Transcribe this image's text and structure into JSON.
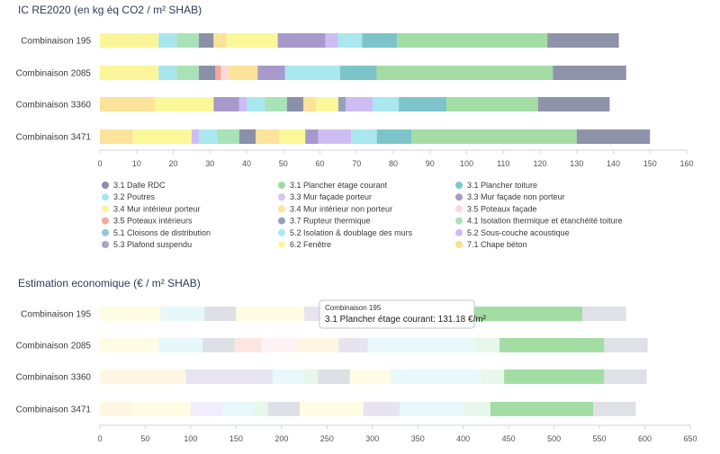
{
  "chart_data": [
    {
      "type": "bar",
      "orientation": "horizontal",
      "stacked": true,
      "title": "IC RE2020 (en kg éq CO2 / m² SHAB)",
      "categories": [
        "Combinaison 195",
        "Combinaison 2085",
        "Combinaison 3360",
        "Combinaison 3471"
      ],
      "xlim": [
        0,
        160
      ],
      "xticks": [
        0,
        10,
        20,
        30,
        40,
        50,
        60,
        70,
        80,
        90,
        100,
        110,
        120,
        130,
        140,
        150,
        160
      ],
      "grid": false,
      "legend_position": "bottom",
      "segments": [
        [
          {
            "series": "3.4 Mur intérieur porteur",
            "value": 16
          },
          {
            "series": "3.2 Poutres",
            "value": 5
          },
          {
            "series": "4.1 Isolation thermique et étanchéité toiture",
            "value": 6
          },
          {
            "series": "3.1 Dalle RDC",
            "value": 4
          },
          {
            "series": "3.4 Mur intérieur non porteur",
            "value": 3.5
          },
          {
            "series": "6.2 Fenêtre",
            "value": 14
          },
          {
            "series": "3.3 Mur façade non porteur",
            "value": 13
          },
          {
            "series": "5.2 Sous-couche acoustique",
            "value": 3.5
          },
          {
            "series": "5.2 Isolation & doublage des murs",
            "value": 6.5
          },
          {
            "series": "3.1 Plancher toiture",
            "value": 9.5
          },
          {
            "series": "3.1 Plancher étage courant",
            "value": 41
          },
          {
            "series": "3.5 Plafond suspendu",
            "value": 19.5
          }
        ],
        [
          {
            "series": "3.4 Mur intérieur porteur",
            "value": 16
          },
          {
            "series": "3.2 Poutres",
            "value": 5
          },
          {
            "series": "4.1 Isolation thermique et étanchéité toiture",
            "value": 6
          },
          {
            "series": "3.1 Dalle RDC",
            "value": 4.5
          },
          {
            "series": "3.5 Poteaux intérieurs",
            "value": 1.5
          },
          {
            "series": "3.5 Poteaux façade",
            "value": 2
          },
          {
            "series": "3.4 Mur intérieur non porteur",
            "value": 8
          },
          {
            "series": "3.3 Mur façade non porteur",
            "value": 7.5
          },
          {
            "series": "5.2 Isolation & doublage des murs",
            "value": 15
          },
          {
            "series": "3.1 Plancher toiture",
            "value": 10
          },
          {
            "series": "3.1 Plancher étage courant",
            "value": 48
          },
          {
            "series": "3.5 Plafond suspendu",
            "value": 20
          }
        ],
        [
          {
            "series": "3.4 Mur intérieur non porteur",
            "value": 15
          },
          {
            "series": "6.2 Fenêtre",
            "value": 16
          },
          {
            "series": "3.3 Mur façade non porteur",
            "value": 7
          },
          {
            "series": "5.2 Sous-couche acoustique",
            "value": 2
          },
          {
            "series": "5.2 Isolation & doublage des murs",
            "value": 5
          },
          {
            "series": "4.1 Isolation thermique et étanchéité toiture",
            "value": 6
          },
          {
            "series": "3.1 Dalle RDC",
            "value": 4.5
          },
          {
            "series": "3.4 Mur intérieur non porteur",
            "value": 3.5
          },
          {
            "series": "6.2 Fenêtre",
            "value": 6
          },
          {
            "series": "3.7 Rupteur thermique",
            "value": 2
          },
          {
            "series": "5.2 Sous-couche acoustique",
            "value": 7.5
          },
          {
            "series": "5.2 Isolation & doublage des murs",
            "value": 7
          },
          {
            "series": "3.1 Plancher toiture",
            "value": 13
          },
          {
            "series": "3.1 Plancher étage courant",
            "value": 25
          },
          {
            "series": "3.5 Plafond suspendu",
            "value": 19.5
          }
        ],
        [
          {
            "series": "3.4 Mur intérieur non porteur",
            "value": 9
          },
          {
            "series": "6.2 Fenêtre",
            "value": 16
          },
          {
            "series": "5.2 Sous-couche acoustique",
            "value": 2
          },
          {
            "series": "5.2 Isolation & doublage des murs",
            "value": 5
          },
          {
            "series": "4.1 Isolation thermique et étanchéité toiture",
            "value": 6
          },
          {
            "series": "3.1 Dalle RDC",
            "value": 4.5
          },
          {
            "series": "3.4 Mur intérieur non porteur",
            "value": 6.5
          },
          {
            "series": "6.2 Fenêtre",
            "value": 7
          },
          {
            "series": "3.3 Mur façade non porteur",
            "value": 3.5
          },
          {
            "series": "5.2 Sous-couche acoustique",
            "value": 9
          },
          {
            "series": "5.2 Isolation & doublage des murs",
            "value": 7
          },
          {
            "series": "3.1 Plancher toiture",
            "value": 9.5
          },
          {
            "series": "3.1 Plancher étage courant",
            "value": 45
          },
          {
            "series": "3.5 Plafond suspendu",
            "value": 20
          }
        ]
      ]
    },
    {
      "type": "bar",
      "orientation": "horizontal",
      "stacked": true,
      "title": "Estimation economique (€ / m² SHAB)",
      "categories": [
        "Combinaison 195",
        "Combinaison 2085",
        "Combinaison 3360",
        "Combinaison 3471"
      ],
      "xlim": [
        0,
        650
      ],
      "xticks": [
        0,
        50,
        100,
        150,
        200,
        250,
        300,
        350,
        400,
        450,
        500,
        550,
        600,
        650
      ],
      "grid": false,
      "highlighted_series": "3.1 Plancher étage courant",
      "tooltip": {
        "category": "Combinaison 195",
        "text": "3.1 Plancher étage courant: 131.18 €/m²"
      },
      "segments": [
        [
          {
            "series": "3.4 Mur intérieur porteur",
            "value": 67
          },
          {
            "series": "3.2 Poutres",
            "value": 48
          },
          {
            "series": "3.1 Dalle RDC",
            "value": 35
          },
          {
            "series": "6.2 Fenêtre",
            "value": 75
          },
          {
            "series": "3.3 Mur façade non porteur",
            "value": 55
          },
          {
            "series": "5.2 Isolation & doublage des murs",
            "value": 60
          },
          {
            "series": "3.1 Plancher toiture",
            "value": 60
          },
          {
            "series": "3.1 Plancher étage courant",
            "value": 131.18
          },
          {
            "series": "3.5 Plafond suspendu",
            "value": 48
          }
        ],
        [
          {
            "series": "3.4 Mur intérieur porteur",
            "value": 65
          },
          {
            "series": "3.2 Poutres",
            "value": 48
          },
          {
            "series": "3.1 Dalle RDC",
            "value": 35
          },
          {
            "series": "3.5 Poteaux intérieurs",
            "value": 30
          },
          {
            "series": "3.5 Poteaux façade",
            "value": 40
          },
          {
            "series": "3.4 Mur intérieur non porteur",
            "value": 45
          },
          {
            "series": "3.3 Mur façade non porteur",
            "value": 32
          },
          {
            "series": "5.2 Isolation & doublage des murs",
            "value": 118
          },
          {
            "series": "4.1 Isolation thermique et étanchéité toiture",
            "value": 27
          },
          {
            "series": "3.1 Plancher étage courant",
            "value": 115
          },
          {
            "series": "3.5 Plafond suspendu",
            "value": 48
          }
        ],
        [
          {
            "series": "3.4 Mur intérieur non porteur",
            "value": 95
          },
          {
            "series": "3.3 Mur façade non porteur",
            "value": 95
          },
          {
            "series": "5.2 Isolation & doublage des murs",
            "value": 35
          },
          {
            "series": "4.1 Isolation thermique et étanchéité toiture",
            "value": 15
          },
          {
            "series": "3.1 Dalle RDC",
            "value": 35
          },
          {
            "series": "6.2 Fenêtre",
            "value": 45
          },
          {
            "series": "5.2 Isolation & doublage des murs",
            "value": 100
          },
          {
            "series": "4.1 Isolation thermique et étanchéité toiture",
            "value": 25
          },
          {
            "series": "3.1 Plancher étage courant",
            "value": 110
          },
          {
            "series": "3.5 Plafond suspendu",
            "value": 47
          }
        ],
        [
          {
            "series": "3.4 Mur intérieur non porteur",
            "value": 35
          },
          {
            "series": "6.2 Fenêtre",
            "value": 65
          },
          {
            "series": "5.2 Sous-couche acoustique",
            "value": 35
          },
          {
            "series": "5.2 Isolation & doublage des murs",
            "value": 35
          },
          {
            "series": "4.1 Isolation thermique et étanchéité toiture",
            "value": 15
          },
          {
            "series": "3.1 Dalle RDC",
            "value": 35
          },
          {
            "series": "6.2 Fenêtre",
            "value": 70
          },
          {
            "series": "3.3 Mur façade non porteur",
            "value": 40
          },
          {
            "series": "5.2 Isolation & doublage des murs",
            "value": 72
          },
          {
            "series": "4.1 Isolation thermique et étanchéité toiture",
            "value": 28
          },
          {
            "series": "3.1 Plancher étage courant",
            "value": 113
          },
          {
            "series": "3.5 Plafond suspendu",
            "value": 47
          }
        ]
      ]
    }
  ],
  "legend": [
    {
      "name": "3.1 Dalle RDC",
      "color": "#8a90a8"
    },
    {
      "name": "3.1 Plancher étage courant",
      "color": "#9fdb9f"
    },
    {
      "name": "3.1 Plancher toiture",
      "color": "#7ec8cc"
    },
    {
      "name": "3.2 Poutres",
      "color": "#a8e6ec"
    },
    {
      "name": "3.3 Mur façade porteur",
      "color": "#d6c6f2"
    },
    {
      "name": "3.3 Mur façade non porteur",
      "color": "#a89acb"
    },
    {
      "name": "3.4 Mur intérieur porteur",
      "color": "#fbf59a"
    },
    {
      "name": "3.4 Mur intérieur non porteur",
      "color": "#fbe39a"
    },
    {
      "name": "3.5 Poteaux façade",
      "color": "#fbd7dc"
    },
    {
      "name": "3.5 Poteaux intérieurs",
      "color": "#f6a79a"
    },
    {
      "name": "3.7 Rupteur thermique",
      "color": "#9aa0b8"
    },
    {
      "name": "4.1 Isolation thermique et étanchéité toiture",
      "color": "#a8e2b6"
    },
    {
      "name": "5.1 Cloisons de distribution",
      "color": "#8fc6dc"
    },
    {
      "name": "5.2 Isolation & doublage des murs",
      "color": "#a8e8ee"
    },
    {
      "name": "5.2 Sous-couche acoustique",
      "color": "#cdbdf4"
    },
    {
      "name": "5.3 Plafond suspendu",
      "color": "#a8a3cc"
    },
    {
      "name": "6.2 Fenêtre",
      "color": "#fbf89a"
    },
    {
      "name": "7.1 Chape béton",
      "color": "#fbe08c"
    }
  ],
  "series_colors": {
    "3.1 Dalle RDC": "#8a90a8",
    "3.1 Plancher étage courant": "#a3dda4",
    "3.1 Plancher toiture": "#7cc4c9",
    "3.2 Poutres": "#a8e6ec",
    "3.3 Mur façade porteur": "#d6c6f2",
    "3.3 Mur façade non porteur": "#a899cc",
    "3.4 Mur intérieur porteur": "#fbf59a",
    "3.4 Mur intérieur non porteur": "#fbe39a",
    "3.5 Poteaux façade": "#fbd7dc",
    "3.5 Poteaux intérieurs": "#f6a79a",
    "3.7 Rupteur thermique": "#9aa0b8",
    "4.1 Isolation thermique et étanchéité toiture": "#a8e2b6",
    "5.2 Isolation & doublage des murs": "#a8e8ee",
    "5.2 Sous-couche acoustique": "#cdbdf4",
    "3.5 Plafond suspendu": "#8e93aa",
    "6.2 Fenêtre": "#fbf89a"
  }
}
